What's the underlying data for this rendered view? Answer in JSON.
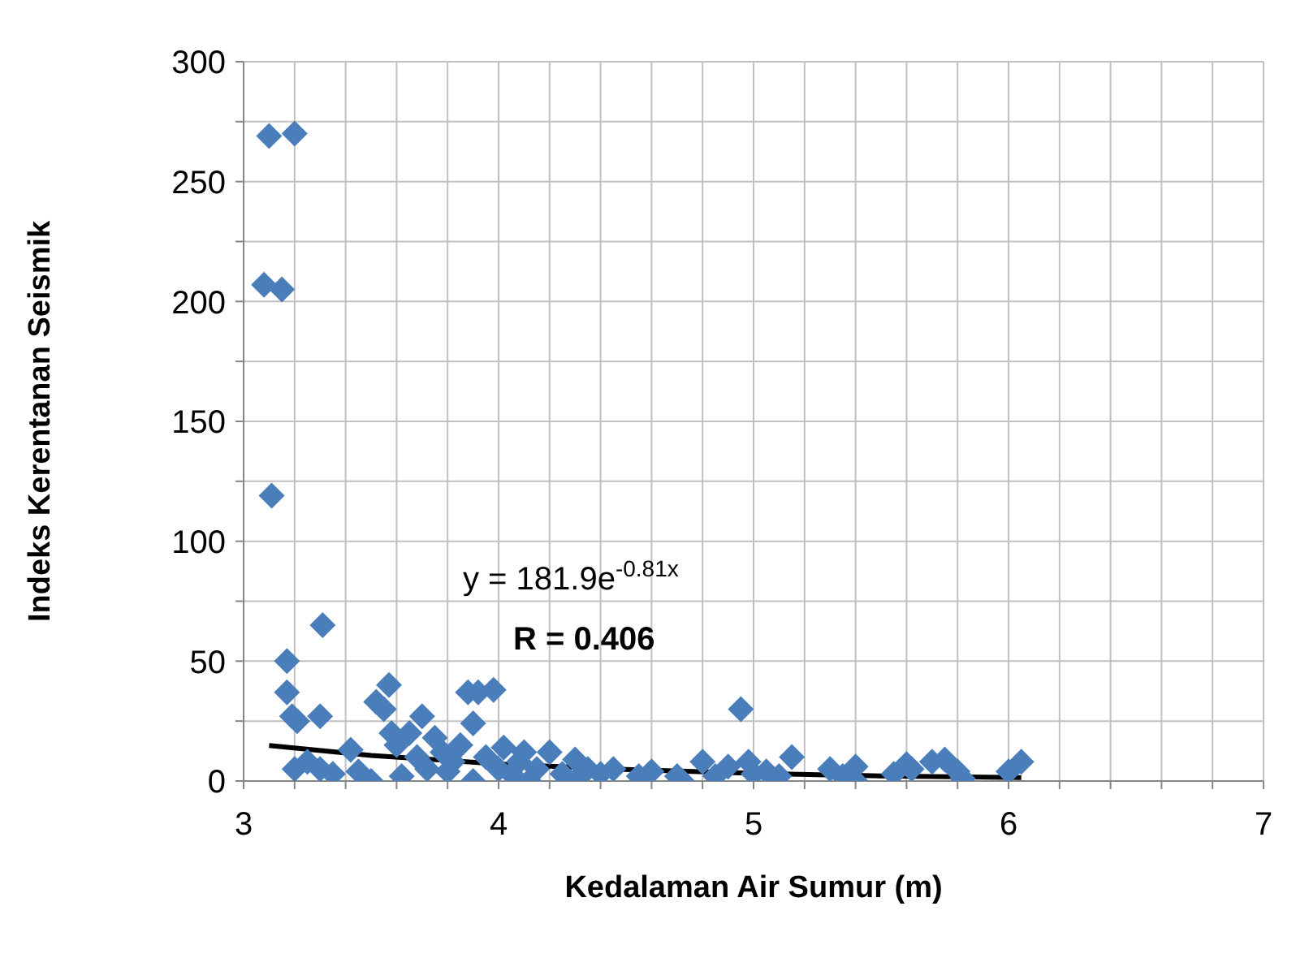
{
  "chart_data": {
    "type": "scatter",
    "xlabel": "Kedalaman Air Sumur (m)",
    "ylabel": "Indeks Kerentanan Seismik",
    "xlim": [
      3,
      7
    ],
    "ylim": [
      0,
      300
    ],
    "xticks": [
      3,
      {
        "value": 3.2,
        "label": null
      },
      {
        "value": 3.4,
        "label": null
      },
      {
        "value": 3.6,
        "label": null
      },
      {
        "value": 3.8,
        "label": null
      },
      4,
      {
        "value": 4.2,
        "label": null
      },
      {
        "value": 4.4,
        "label": null
      },
      {
        "value": 4.6,
        "label": null
      },
      {
        "value": 4.8,
        "label": null
      },
      5,
      {
        "value": 5.2,
        "label": null
      },
      {
        "value": 5.4,
        "label": null
      },
      {
        "value": 5.6,
        "label": null
      },
      {
        "value": 5.8,
        "label": null
      },
      6,
      {
        "value": 6.2,
        "label": null
      },
      {
        "value": 6.4,
        "label": null
      },
      {
        "value": 6.6,
        "label": null
      },
      {
        "value": 6.8,
        "label": null
      },
      7
    ],
    "yticks": [
      0,
      {
        "value": 25,
        "label": null
      },
      50,
      {
        "value": 75,
        "label": null
      },
      100,
      {
        "value": 125,
        "label": null
      },
      150,
      {
        "value": 175,
        "label": null
      },
      200,
      {
        "value": 225,
        "label": null
      },
      250,
      {
        "value": 275,
        "label": null
      },
      300
    ],
    "grid": true,
    "legend": false,
    "annotations": [
      "y = 181.9e$^{-0.81x}$",
      "R = 0.406"
    ],
    "series": [
      {
        "marker": "diamond",
        "color": "#4a7ebb",
        "x": [
          3.1,
          3.2,
          3.08,
          3.15,
          3.11,
          3.31,
          3.17,
          3.17,
          3.19,
          3.21,
          3.3,
          3.2,
          3.25,
          3.3,
          3.35,
          3.42,
          3.45,
          3.5,
          3.52,
          3.55,
          3.57,
          3.58,
          3.6,
          3.62,
          3.65,
          3.68,
          3.7,
          3.72,
          3.75,
          3.78,
          3.8,
          3.82,
          3.85,
          3.88,
          3.9,
          3.92,
          3.95,
          3.98,
          4.0,
          4.02,
          4.05,
          4.08,
          4.1,
          4.15,
          4.2,
          4.25,
          4.3,
          4.35,
          4.4,
          4.45,
          4.55,
          4.6,
          4.7,
          4.8,
          4.85,
          4.9,
          4.95,
          4.98,
          5.0,
          5.05,
          5.1,
          5.15,
          5.3,
          5.35,
          5.4,
          5.55,
          5.6,
          5.62,
          5.7,
          5.75,
          5.8,
          5.82,
          6.0,
          6.05,
          3.9,
          4.12,
          4.3,
          4.72,
          5.4
        ],
        "values": [
          269,
          270,
          207,
          205,
          119,
          65,
          50,
          37,
          27,
          25,
          27,
          5,
          8,
          5,
          3,
          13,
          4,
          0,
          33,
          30,
          40,
          20,
          15,
          2,
          20,
          10,
          27,
          5,
          18,
          12,
          4,
          8,
          15,
          37,
          24,
          37,
          10,
          38,
          5,
          14,
          3,
          8,
          12,
          5,
          12,
          3,
          9,
          5,
          3,
          5,
          2,
          4,
          2,
          8,
          2,
          6,
          30,
          8,
          3,
          4,
          2,
          10,
          5,
          2,
          6,
          3,
          7,
          5,
          8,
          9,
          4,
          1,
          4,
          8,
          0,
          0,
          0,
          0,
          0
        ]
      },
      {
        "type": "line",
        "color": "#000000",
        "x": [
          3.1,
          3.5,
          4,
          4.5,
          5,
          5.5,
          6.05
        ],
        "values": [
          14.8,
          10.7,
          7.1,
          4.8,
          3.2,
          2.1,
          1.4
        ]
      }
    ]
  }
}
